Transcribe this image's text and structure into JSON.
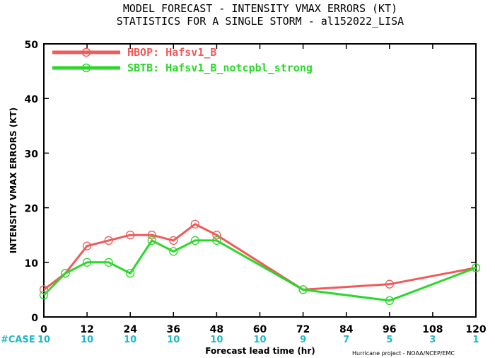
{
  "chart_data": {
    "type": "line",
    "title": "MODEL FORECAST - INTENSITY VMAX ERRORS (KT)",
    "subtitle": "STATISTICS FOR A SINGLE STORM - al152022_LISA",
    "xlabel": "Forecast lead time (hr)",
    "ylabel": "INTENSITY VMAX ERRORS (KT)",
    "xlim": [
      0,
      120
    ],
    "ylim": [
      0,
      50
    ],
    "xticks": [
      0,
      12,
      24,
      36,
      48,
      60,
      72,
      84,
      96,
      108,
      120
    ],
    "yticks": [
      0,
      10,
      20,
      30,
      40,
      50
    ],
    "legend_position": "top-left",
    "series": [
      {
        "name": "HBOP: Hafsv1_B",
        "color": "#f05a5a",
        "x": [
          0,
          6,
          12,
          18,
          24,
          30,
          36,
          42,
          48,
          72,
          96,
          120
        ],
        "values": [
          5,
          8,
          13,
          14,
          15,
          15,
          14,
          17,
          15,
          5,
          6,
          9
        ]
      },
      {
        "name": "SBTB: Hafsv1_B_notcpbl_strong",
        "color": "#2ad82a",
        "x": [
          0,
          6,
          12,
          18,
          24,
          30,
          36,
          42,
          48,
          72,
          96,
          120
        ],
        "values": [
          4,
          8,
          10,
          10,
          8,
          14,
          12,
          14,
          14,
          5,
          3,
          9
        ]
      }
    ],
    "case_label": "#CASE",
    "case_x": [
      0,
      12,
      24,
      36,
      48,
      60,
      72,
      84,
      96,
      108,
      120
    ],
    "case_counts": [
      "10",
      "10",
      "10",
      "10",
      "10",
      "10",
      "9",
      "7",
      "5",
      "3",
      "1"
    ],
    "case_color": "#1fb8c8",
    "credit": "Hurricane project - NOAA/NCEP/EMC"
  }
}
